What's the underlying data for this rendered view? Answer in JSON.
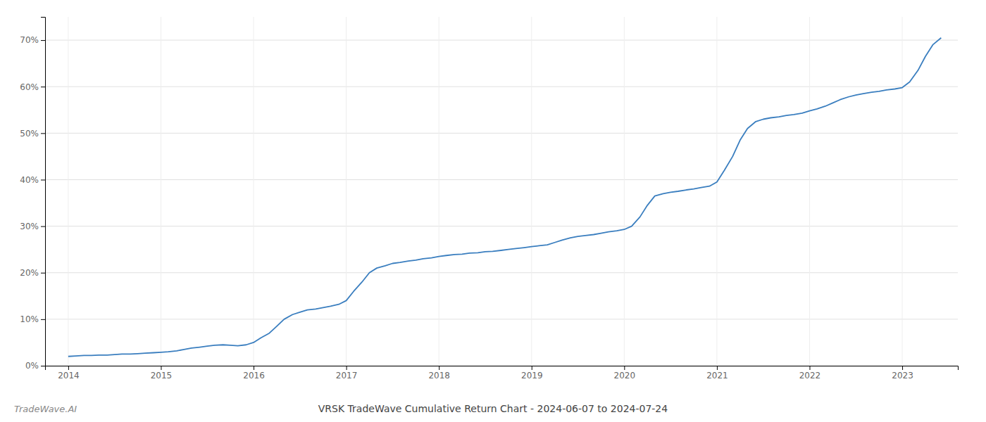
{
  "chart_data": {
    "type": "line",
    "title": "VRSK TradeWave Cumulative Return Chart - 2024-06-07 to 2024-07-24",
    "annotations": [
      "TradeWave.AI"
    ],
    "color": "#3a7ebf",
    "grid": true,
    "x": [
      2014.0,
      2014.08,
      2014.17,
      2014.25,
      2014.33,
      2014.42,
      2014.5,
      2014.58,
      2014.67,
      2014.75,
      2014.83,
      2014.92,
      2015.0,
      2015.08,
      2015.17,
      2015.25,
      2015.33,
      2015.42,
      2015.5,
      2015.58,
      2015.67,
      2015.75,
      2015.83,
      2015.92,
      2016.0,
      2016.08,
      2016.17,
      2016.25,
      2016.33,
      2016.42,
      2016.5,
      2016.58,
      2016.67,
      2016.75,
      2016.83,
      2016.92,
      2017.0,
      2017.08,
      2017.17,
      2017.25,
      2017.33,
      2017.42,
      2017.5,
      2017.58,
      2017.67,
      2017.75,
      2017.83,
      2017.92,
      2018.0,
      2018.08,
      2018.17,
      2018.25,
      2018.33,
      2018.42,
      2018.5,
      2018.58,
      2018.67,
      2018.75,
      2018.83,
      2018.92,
      2019.0,
      2019.08,
      2019.17,
      2019.25,
      2019.33,
      2019.42,
      2019.5,
      2019.58,
      2019.67,
      2019.75,
      2019.83,
      2019.92,
      2020.0,
      2020.08,
      2020.17,
      2020.25,
      2020.33,
      2020.42,
      2020.5,
      2020.58,
      2020.67,
      2020.75,
      2020.83,
      2020.92,
      2021.0,
      2021.08,
      2021.17,
      2021.25,
      2021.33,
      2021.42,
      2021.5,
      2021.58,
      2021.67,
      2021.75,
      2021.83,
      2021.92,
      2022.0,
      2022.08,
      2022.17,
      2022.25,
      2022.33,
      2022.42,
      2022.5,
      2022.58,
      2022.67,
      2022.75,
      2022.83,
      2022.92,
      2023.0,
      2023.08,
      2023.17,
      2023.25,
      2023.33,
      2023.42
    ],
    "values": [
      2.0,
      2.1,
      2.2,
      2.2,
      2.3,
      2.3,
      2.4,
      2.5,
      2.5,
      2.6,
      2.7,
      2.8,
      2.9,
      3.0,
      3.2,
      3.5,
      3.8,
      4.0,
      4.2,
      4.4,
      4.5,
      4.4,
      4.3,
      4.5,
      5.0,
      6.0,
      7.0,
      8.5,
      10.0,
      11.0,
      11.5,
      12.0,
      12.2,
      12.5,
      12.8,
      13.2,
      14.0,
      16.0,
      18.0,
      20.0,
      21.0,
      21.5,
      22.0,
      22.2,
      22.5,
      22.7,
      23.0,
      23.2,
      23.5,
      23.7,
      23.9,
      24.0,
      24.2,
      24.3,
      24.5,
      24.6,
      24.8,
      25.0,
      25.2,
      25.4,
      25.6,
      25.8,
      26.0,
      26.5,
      27.0,
      27.5,
      27.8,
      28.0,
      28.2,
      28.5,
      28.8,
      29.0,
      29.3,
      30.0,
      32.0,
      34.5,
      36.5,
      37.0,
      37.3,
      37.5,
      37.8,
      38.0,
      38.3,
      38.6,
      39.5,
      42.0,
      45.0,
      48.5,
      51.0,
      52.5,
      53.0,
      53.3,
      53.5,
      53.8,
      54.0,
      54.3,
      54.8,
      55.2,
      55.8,
      56.5,
      57.2,
      57.8,
      58.2,
      58.5,
      58.8,
      59.0,
      59.3,
      59.5,
      59.8,
      61.0,
      63.5,
      66.5,
      69.0,
      70.5
    ],
    "xlim": [
      2013.75,
      2023.6
    ],
    "ylim": [
      0,
      75
    ],
    "xticks": [
      2014,
      2015,
      2016,
      2017,
      2018,
      2019,
      2020,
      2021,
      2022,
      2023
    ],
    "yticks": [
      {
        "value": 0,
        "label": "0%"
      },
      {
        "value": 10,
        "label": "10%"
      },
      {
        "value": 20,
        "label": "20%"
      },
      {
        "value": 30,
        "label": "30%"
      },
      {
        "value": 40,
        "label": "40%"
      },
      {
        "value": 50,
        "label": "50%"
      },
      {
        "value": 60,
        "label": "60%"
      },
      {
        "value": 70,
        "label": "70%"
      }
    ]
  }
}
